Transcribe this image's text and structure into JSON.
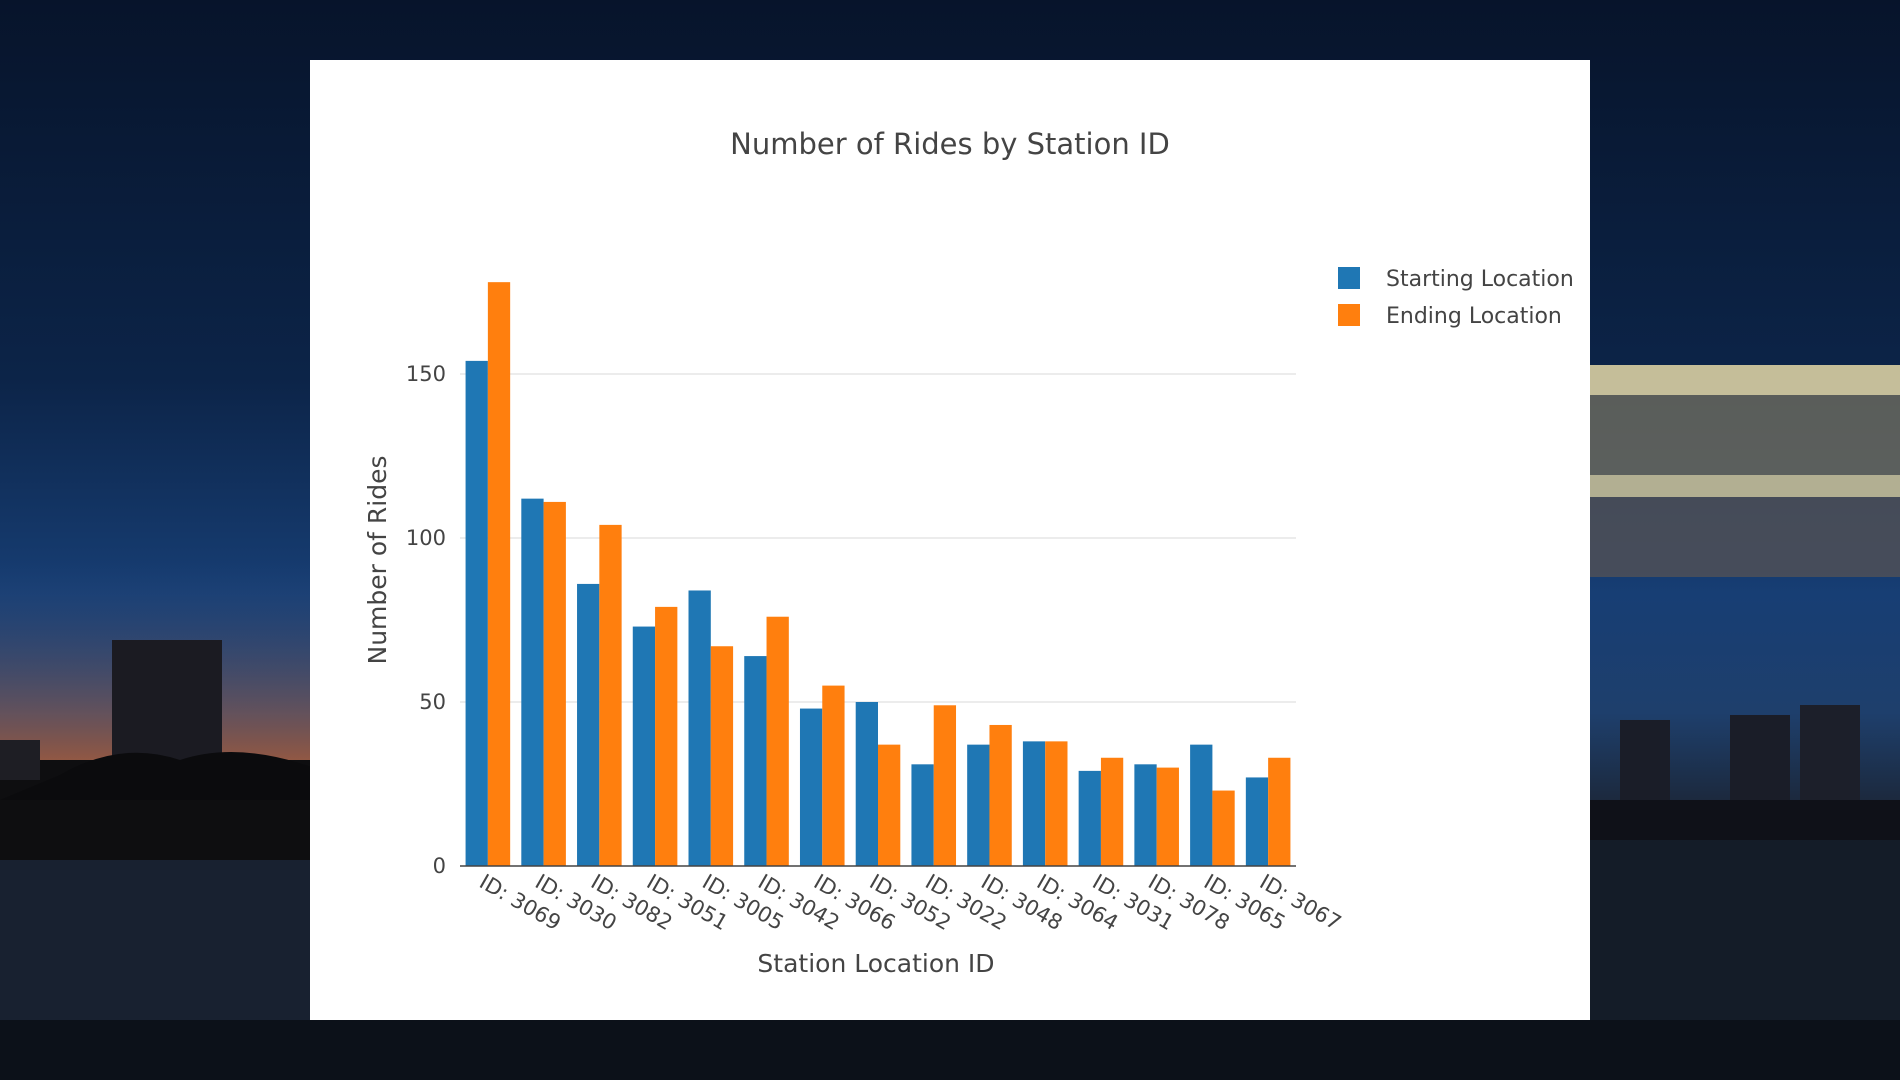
{
  "chart_data": {
    "type": "bar",
    "title": "Number of Rides by Station ID",
    "xlabel": "Station Location ID",
    "ylabel": "Number of Rides",
    "categories": [
      "ID: 3069",
      "ID: 3030",
      "ID: 3082",
      "ID: 3051",
      "ID: 3005",
      "ID: 3042",
      "ID: 3066",
      "ID: 3052",
      "ID: 3022",
      "ID: 3048",
      "ID: 3064",
      "ID: 3031",
      "ID: 3078",
      "ID: 3065",
      "ID: 3067"
    ],
    "series": [
      {
        "name": "Starting Location",
        "color": "#1f77b4",
        "values": [
          154,
          112,
          86,
          73,
          84,
          64,
          48,
          50,
          31,
          37,
          38,
          29,
          31,
          37,
          27
        ]
      },
      {
        "name": "Ending Location",
        "color": "#ff7f0e",
        "values": [
          178,
          111,
          104,
          79,
          67,
          76,
          55,
          37,
          49,
          43,
          38,
          33,
          30,
          23,
          33
        ]
      }
    ],
    "yticks": [
      "0",
      "50",
      "100",
      "150"
    ],
    "ylim": [
      0,
      180
    ],
    "grid": true,
    "legend": "top-right"
  }
}
